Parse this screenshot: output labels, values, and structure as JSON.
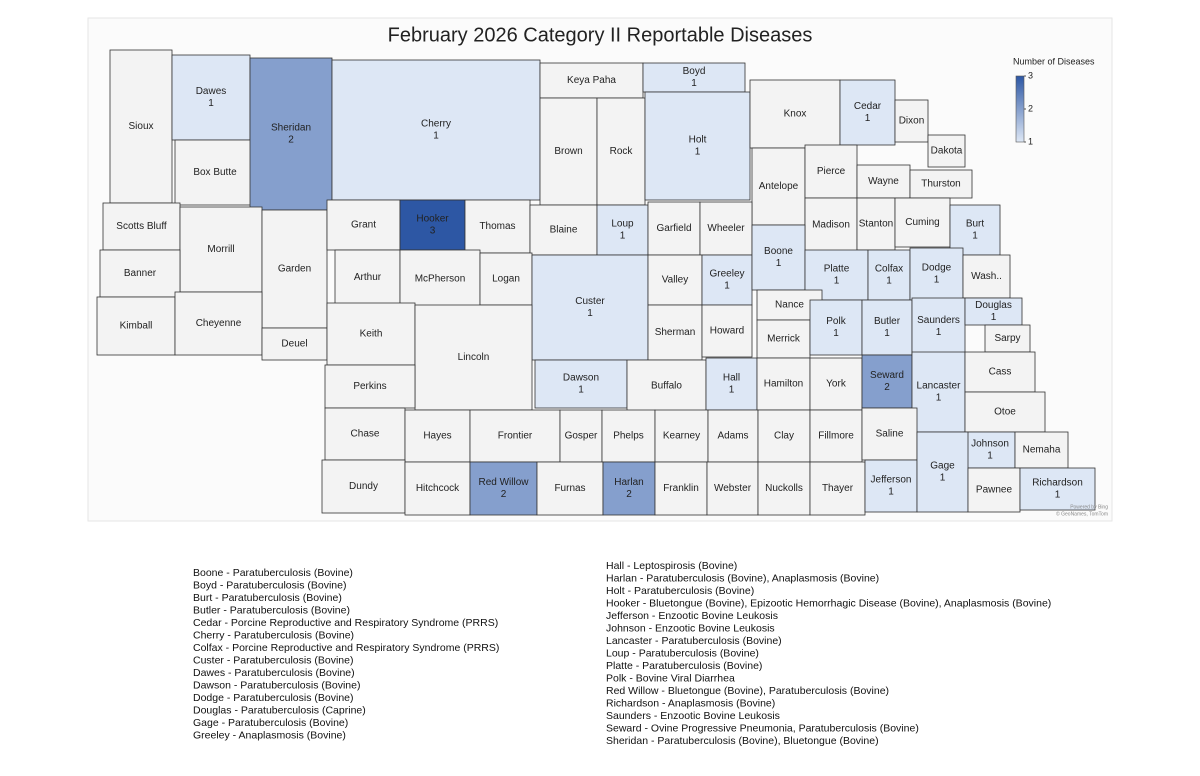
{
  "chart_data": {
    "type": "choropleth",
    "title": "February 2026 Category II Reportable Diseases",
    "legend_title": "Number of Diseases",
    "value_range": [
      1,
      3
    ],
    "legend_ticks": [
      1,
      2,
      3
    ],
    "color_range": [
      "#dde7f5",
      "#2d57a4"
    ],
    "empty_color": "#f3f3f3",
    "regions": [
      {
        "name": "Sioux",
        "value": null
      },
      {
        "name": "Dawes",
        "value": 1
      },
      {
        "name": "Box Butte",
        "value": null
      },
      {
        "name": "Sheridan",
        "value": 2
      },
      {
        "name": "Cherry",
        "value": 1
      },
      {
        "name": "Keya Paha",
        "value": null
      },
      {
        "name": "Boyd",
        "value": 1
      },
      {
        "name": "Brown",
        "value": null
      },
      {
        "name": "Rock",
        "value": null
      },
      {
        "name": "Holt",
        "value": 1
      },
      {
        "name": "Knox",
        "value": null
      },
      {
        "name": "Cedar",
        "value": 1
      },
      {
        "name": "Dixon",
        "value": null
      },
      {
        "name": "Dakota",
        "value": null
      },
      {
        "name": "Antelope",
        "value": null
      },
      {
        "name": "Pierce",
        "value": null
      },
      {
        "name": "Wayne",
        "value": null
      },
      {
        "name": "Thurston",
        "value": null
      },
      {
        "name": "Scotts Bluff",
        "value": null
      },
      {
        "name": "Morrill",
        "value": null
      },
      {
        "name": "Garden",
        "value": null
      },
      {
        "name": "Grant",
        "value": null
      },
      {
        "name": "Hooker",
        "value": 3
      },
      {
        "name": "Thomas",
        "value": null
      },
      {
        "name": "Blaine",
        "value": null
      },
      {
        "name": "Loup",
        "value": 1
      },
      {
        "name": "Garfield",
        "value": null
      },
      {
        "name": "Wheeler",
        "value": null
      },
      {
        "name": "Madison",
        "value": null
      },
      {
        "name": "Stanton",
        "value": null
      },
      {
        "name": "Cuming",
        "value": null
      },
      {
        "name": "Burt",
        "value": 1
      },
      {
        "name": "Banner",
        "value": null
      },
      {
        "name": "Arthur",
        "value": null
      },
      {
        "name": "McPherson",
        "value": null
      },
      {
        "name": "Logan",
        "value": null
      },
      {
        "name": "Custer",
        "value": 1
      },
      {
        "name": "Valley",
        "value": null
      },
      {
        "name": "Greeley",
        "value": 1
      },
      {
        "name": "Boone",
        "value": 1
      },
      {
        "name": "Platte",
        "value": 1
      },
      {
        "name": "Colfax",
        "value": 1
      },
      {
        "name": "Dodge",
        "value": 1
      },
      {
        "name": "Wash..",
        "value": null
      },
      {
        "name": "Kimball",
        "value": null
      },
      {
        "name": "Cheyenne",
        "value": null
      },
      {
        "name": "Deuel",
        "value": null
      },
      {
        "name": "Keith",
        "value": null
      },
      {
        "name": "Lincoln",
        "value": null
      },
      {
        "name": "Nance",
        "value": null
      },
      {
        "name": "Sherman",
        "value": null
      },
      {
        "name": "Howard",
        "value": null
      },
      {
        "name": "Merrick",
        "value": null
      },
      {
        "name": "Polk",
        "value": 1
      },
      {
        "name": "Butler",
        "value": 1
      },
      {
        "name": "Saunders",
        "value": 1
      },
      {
        "name": "Douglas",
        "value": 1
      },
      {
        "name": "Sarpy",
        "value": null
      },
      {
        "name": "Perkins",
        "value": null
      },
      {
        "name": "Dawson",
        "value": 1
      },
      {
        "name": "Buffalo",
        "value": null
      },
      {
        "name": "Hall",
        "value": 1
      },
      {
        "name": "Hamilton",
        "value": null
      },
      {
        "name": "York",
        "value": null
      },
      {
        "name": "Seward",
        "value": 2
      },
      {
        "name": "Lancaster",
        "value": 1
      },
      {
        "name": "Cass",
        "value": null
      },
      {
        "name": "Otoe",
        "value": null
      },
      {
        "name": "Chase",
        "value": null
      },
      {
        "name": "Hayes",
        "value": null
      },
      {
        "name": "Frontier",
        "value": null
      },
      {
        "name": "Gosper",
        "value": null
      },
      {
        "name": "Phelps",
        "value": null
      },
      {
        "name": "Kearney",
        "value": null
      },
      {
        "name": "Adams",
        "value": null
      },
      {
        "name": "Clay",
        "value": null
      },
      {
        "name": "Fillmore",
        "value": null
      },
      {
        "name": "Saline",
        "value": null
      },
      {
        "name": "Johnson",
        "value": 1
      },
      {
        "name": "Nemaha",
        "value": null
      },
      {
        "name": "Dundy",
        "value": null
      },
      {
        "name": "Hitchcock",
        "value": null
      },
      {
        "name": "Red Willow",
        "value": 2
      },
      {
        "name": "Furnas",
        "value": null
      },
      {
        "name": "Harlan",
        "value": 2
      },
      {
        "name": "Franklin",
        "value": null
      },
      {
        "name": "Webster",
        "value": null
      },
      {
        "name": "Nuckolls",
        "value": null
      },
      {
        "name": "Thayer",
        "value": null
      },
      {
        "name": "Jefferson",
        "value": 1
      },
      {
        "name": "Gage",
        "value": 1
      },
      {
        "name": "Pawnee",
        "value": null
      },
      {
        "name": "Richardson",
        "value": 1
      }
    ]
  },
  "credits": [
    "Powered by Bing",
    "© GeoNames, TomTom"
  ],
  "notes": [
    "Boone - Paratuberculosis (Bovine)",
    "Boyd - Paratuberculosis (Bovine)",
    "Burt - Paratuberculosis (Bovine)",
    "Butler - Paratuberculosis (Bovine)",
    "Cedar - Porcine Reproductive and Respiratory Syndrome (PRRS)",
    "Cherry - Paratuberculosis (Bovine)",
    "Colfax - Porcine Reproductive and Respiratory Syndrome (PRRS)",
    "Custer - Paratuberculosis (Bovine)",
    "Dawes - Paratuberculosis (Bovine)",
    "Dawson - Paratuberculosis (Bovine)",
    "Dodge - Paratuberculosis (Bovine)",
    "Douglas - Paratuberculosis (Caprine)",
    "Gage - Paratuberculosis (Bovine)",
    "Greeley - Anaplasmosis (Bovine)",
    "Hall - Leptospirosis (Bovine)",
    "Harlan - Paratuberculosis (Bovine), Anaplasmosis (Bovine)",
    "Holt - Paratuberculosis (Bovine)",
    "Hooker - Bluetongue (Bovine), Epizootic Hemorrhagic Disease (Bovine), Anaplasmosis (Bovine)",
    "Jefferson - Enzootic Bovine Leukosis",
    "Johnson - Enzootic Bovine Leukosis",
    "Lancaster - Paratuberculosis (Bovine)",
    "Loup - Paratuberculosis (Bovine)",
    "Platte - Paratuberculosis (Bovine)",
    "Polk - Bovine Viral Diarrhea",
    "Red Willow - Bluetongue (Bovine), Paratuberculosis (Bovine)",
    "Richardson - Anaplasmosis (Bovine)",
    "Saunders - Enzootic Bovine Leukosis",
    "Seward - Ovine Progressive Pneumonia, Paratuberculosis (Bovine)",
    "Sheridan - Paratuberculosis (Bovine), Bluetongue (Bovine)"
  ]
}
